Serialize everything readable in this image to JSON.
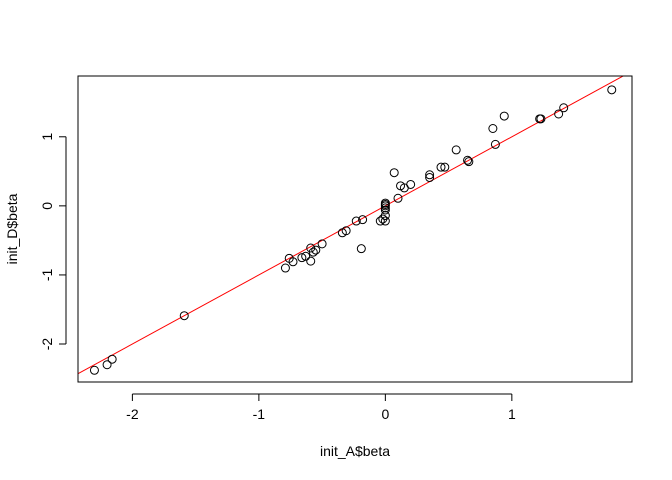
{
  "chart_data": {
    "type": "scatter",
    "title": "",
    "xlabel": "init_A$beta",
    "ylabel": "init_D$beta",
    "xlim": [
      -2.43,
      1.95
    ],
    "ylim": [
      -2.55,
      1.88
    ],
    "x_ticks": [
      -2,
      -1,
      0,
      1
    ],
    "y_ticks": [
      -2,
      -1,
      0,
      1
    ],
    "x_tick_labels": [
      "-2",
      "-1",
      "0",
      "1"
    ],
    "y_tick_labels": [
      "-2",
      "-1",
      "0",
      "1"
    ],
    "grid": false,
    "legend": "none",
    "point_color": "#000000",
    "line_color": "#ff0000",
    "fit_line": {
      "intercept": 0.0,
      "slope": 1.0
    },
    "points": [
      {
        "x": -2.3,
        "y": -2.38
      },
      {
        "x": -2.2,
        "y": -2.3
      },
      {
        "x": -2.16,
        "y": -2.22
      },
      {
        "x": -1.59,
        "y": -1.59
      },
      {
        "x": -0.79,
        "y": -0.9
      },
      {
        "x": -0.76,
        "y": -0.76
      },
      {
        "x": -0.73,
        "y": -0.81
      },
      {
        "x": -0.66,
        "y": -0.75
      },
      {
        "x": -0.63,
        "y": -0.73
      },
      {
        "x": -0.59,
        "y": -0.8
      },
      {
        "x": -0.59,
        "y": -0.61
      },
      {
        "x": -0.57,
        "y": -0.67
      },
      {
        "x": -0.55,
        "y": -0.64
      },
      {
        "x": -0.5,
        "y": -0.55
      },
      {
        "x": -0.34,
        "y": -0.39
      },
      {
        "x": -0.31,
        "y": -0.36
      },
      {
        "x": -0.23,
        "y": -0.22
      },
      {
        "x": -0.19,
        "y": -0.62
      },
      {
        "x": -0.18,
        "y": -0.2
      },
      {
        "x": -0.04,
        "y": -0.22
      },
      {
        "x": -0.02,
        "y": -0.19
      },
      {
        "x": 0.0,
        "y": -0.22
      },
      {
        "x": 0.0,
        "y": -0.14
      },
      {
        "x": 0.0,
        "y": -0.06
      },
      {
        "x": 0.0,
        "y": -0.03
      },
      {
        "x": 0.0,
        "y": 0.0
      },
      {
        "x": 0.0,
        "y": 0.02
      },
      {
        "x": 0.0,
        "y": 0.04
      },
      {
        "x": 0.07,
        "y": 0.48
      },
      {
        "x": 0.1,
        "y": 0.11
      },
      {
        "x": 0.12,
        "y": 0.29
      },
      {
        "x": 0.15,
        "y": 0.26
      },
      {
        "x": 0.2,
        "y": 0.31
      },
      {
        "x": 0.35,
        "y": 0.41
      },
      {
        "x": 0.35,
        "y": 0.45
      },
      {
        "x": 0.44,
        "y": 0.56
      },
      {
        "x": 0.47,
        "y": 0.56
      },
      {
        "x": 0.56,
        "y": 0.81
      },
      {
        "x": 0.65,
        "y": 0.66
      },
      {
        "x": 0.66,
        "y": 0.64
      },
      {
        "x": 0.85,
        "y": 1.12
      },
      {
        "x": 0.87,
        "y": 0.89
      },
      {
        "x": 0.94,
        "y": 1.3
      },
      {
        "x": 1.22,
        "y": 1.26
      },
      {
        "x": 1.23,
        "y": 1.26
      },
      {
        "x": 1.37,
        "y": 1.33
      },
      {
        "x": 1.41,
        "y": 1.42
      },
      {
        "x": 1.79,
        "y": 1.68
      }
    ]
  }
}
